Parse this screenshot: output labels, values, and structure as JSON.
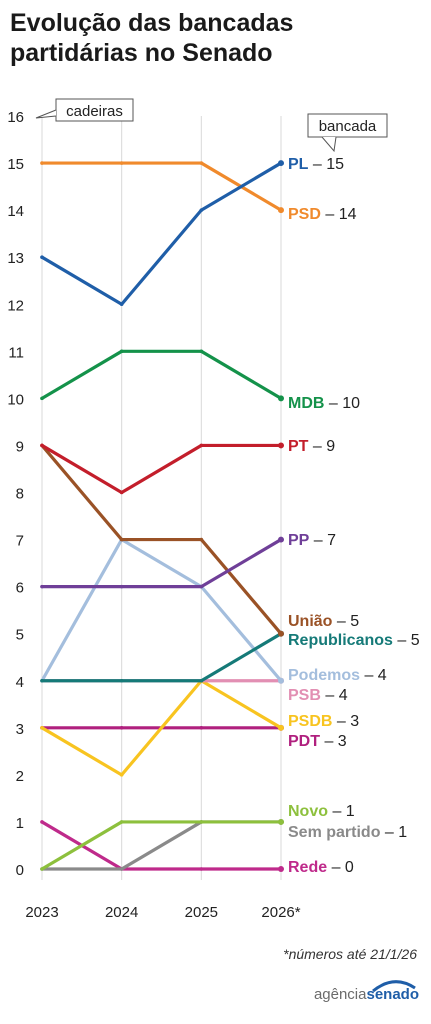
{
  "title": [
    "Evolução das bancadas",
    "partidárias no Senado"
  ],
  "footnote": "*números até 21/1/26",
  "logo": {
    "part1": "agência",
    "part2": "senado"
  },
  "chart_data": {
    "type": "line",
    "x": [
      "2023",
      "2024",
      "2025",
      "2026*"
    ],
    "ylim": [
      0,
      16
    ],
    "yticks": [
      "0",
      "1",
      "2",
      "3",
      "4",
      "5",
      "6",
      "7",
      "8",
      "9",
      "10",
      "11",
      "12",
      "13",
      "14",
      "15",
      "16"
    ],
    "ylabel": "cadeiras",
    "series_label_title": "bancada",
    "grid": "vertical",
    "series": [
      {
        "name": "PL",
        "label": "– 15",
        "color": "#1f5ea8",
        "values": [
          13,
          12,
          14,
          15
        ]
      },
      {
        "name": "PSD",
        "label": "– 14",
        "color": "#f08a2c",
        "values": [
          15,
          15,
          15,
          14
        ]
      },
      {
        "name": "MDB",
        "label": "– 10",
        "color": "#14924a",
        "values": [
          10,
          11,
          11,
          10
        ]
      },
      {
        "name": "PT",
        "label": "– 9",
        "color": "#c31e2b",
        "values": [
          9,
          8,
          9,
          9
        ]
      },
      {
        "name": "PP",
        "label": "– 7",
        "color": "#6f3f98",
        "values": [
          6,
          6,
          6,
          7
        ]
      },
      {
        "name": "União",
        "label": "– 5",
        "color": "#9a5226",
        "values": [
          9,
          7,
          7,
          5
        ]
      },
      {
        "name": "Republicanos",
        "label": "– 5",
        "color": "#157a78",
        "values": [
          4,
          4,
          4,
          5
        ]
      },
      {
        "name": "Podemos",
        "label": "– 4",
        "color": "#a4bedd",
        "values": [
          4,
          7,
          6,
          4
        ]
      },
      {
        "name": "PSB",
        "label": "– 4",
        "color": "#e28fb3",
        "values": [
          4,
          4,
          4,
          4
        ]
      },
      {
        "name": "PSDB",
        "label": "– 3",
        "color": "#f8c420",
        "values": [
          3,
          2,
          4,
          3
        ]
      },
      {
        "name": "PDT",
        "label": "– 3",
        "color": "#b0207e",
        "values": [
          3,
          3,
          3,
          3
        ]
      },
      {
        "name": "Novo",
        "label": "– 1",
        "color": "#8dc03d",
        "values": [
          0,
          1,
          1,
          1
        ]
      },
      {
        "name": "Sem partido",
        "label": "– 1",
        "color": "#8a8a8a",
        "values": [
          0,
          0,
          1,
          1
        ]
      },
      {
        "name": "Rede",
        "label": "– 0",
        "color": "#bf2a8b",
        "values": [
          1,
          0,
          0,
          0
        ]
      }
    ]
  }
}
